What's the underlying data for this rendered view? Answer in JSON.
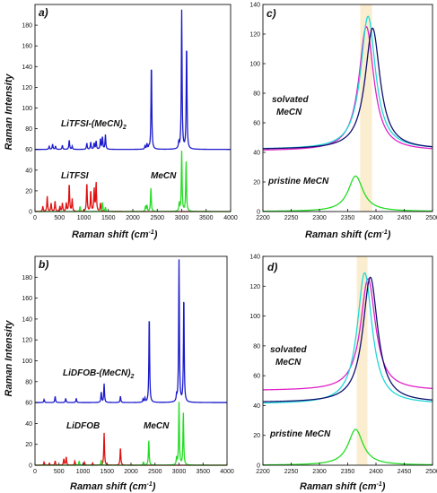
{
  "colors": {
    "blue": "#1a1acc",
    "red": "#e01010",
    "green": "#22dd22",
    "magenta": "#e020c8",
    "cyan": "#20d8d8",
    "navy": "#101070",
    "band": "#fbeed0",
    "axis": "#111111"
  },
  "shared": {
    "xlabel_text": "Raman shift",
    "xlabel_unit": "(cm",
    "xlabel_sup": "-1",
    "xlabel_close": ")",
    "ylabel": "Raman Intensity"
  },
  "chart_data": [
    {
      "id": "a",
      "panel_label": "a)",
      "type": "line",
      "xlim": [
        0,
        4000
      ],
      "ylim": [
        0,
        200
      ],
      "xticks": [
        0,
        500,
        1000,
        1500,
        2000,
        2500,
        3000,
        3500,
        4000
      ],
      "yticks": [
        0,
        20,
        40,
        60,
        80,
        100,
        120,
        140,
        160,
        180
      ],
      "annotations": [
        "LiTFSI-(MeCN)",
        "2",
        "LiTFSI",
        "MeCN"
      ],
      "series": [
        {
          "color": "blue",
          "baseline": 60,
          "peaks": [
            [
              290,
              3
            ],
            [
              360,
              5
            ],
            [
              420,
              3
            ],
            [
              560,
              4
            ],
            [
              700,
              9
            ],
            [
              760,
              3
            ],
            [
              1060,
              6
            ],
            [
              1140,
              7
            ],
            [
              1210,
              6
            ],
            [
              1250,
              8
            ],
            [
              1340,
              10
            ],
            [
              1380,
              12
            ],
            [
              1440,
              14
            ],
            [
              2250,
              3
            ],
            [
              2290,
              5
            ],
            [
              2330,
              2
            ],
            [
              2380,
              84
            ],
            [
              2940,
              6
            ],
            [
              3000,
              134
            ],
            [
              3100,
              103
            ]
          ]
        },
        {
          "color": "red",
          "baseline": 0,
          "peaks": [
            [
              160,
              5
            ],
            [
              250,
              15
            ],
            [
              330,
              8
            ],
            [
              410,
              10
            ],
            [
              510,
              5
            ],
            [
              560,
              8
            ],
            [
              640,
              8
            ],
            [
              700,
              27
            ],
            [
              760,
              12
            ],
            [
              1060,
              28
            ],
            [
              1140,
              20
            ],
            [
              1210,
              22
            ],
            [
              1250,
              28
            ],
            [
              1340,
              8
            ]
          ]
        },
        {
          "color": "green",
          "baseline": 0,
          "peaks": [
            [
              920,
              5
            ],
            [
              1380,
              9
            ],
            [
              1440,
              4
            ],
            [
              2260,
              5
            ],
            [
              2290,
              6
            ],
            [
              2370,
              23
            ],
            [
              2950,
              8
            ],
            [
              3000,
              58
            ],
            [
              3090,
              49
            ]
          ]
        }
      ]
    },
    {
      "id": "c",
      "panel_label": "c)",
      "type": "line",
      "xlim": [
        2200,
        2500
      ],
      "ylim": [
        0,
        140
      ],
      "xticks": [
        2200,
        2250,
        2300,
        2350,
        2400,
        2450,
        2500
      ],
      "yticks": [
        0,
        20,
        40,
        60,
        80,
        100,
        120,
        140
      ],
      "band": [
        2372,
        2393
      ],
      "annotations": [
        "solvated",
        "MeCN",
        "pristine MeCN"
      ],
      "series": [
        {
          "color": "magenta",
          "baseline": 41,
          "peaks": [
            [
              2383,
              84
            ]
          ]
        },
        {
          "color": "cyan",
          "baseline": 42,
          "peaks": [
            [
              2386,
              90
            ]
          ]
        },
        {
          "color": "navy",
          "baseline": 42,
          "peaks": [
            [
              2394,
              82
            ]
          ]
        },
        {
          "color": "green",
          "baseline": 0,
          "peaks": [
            [
              2364,
              24
            ]
          ]
        }
      ]
    },
    {
      "id": "b",
      "panel_label": "b)",
      "type": "line",
      "xlim": [
        0,
        4000
      ],
      "ylim": [
        0,
        200
      ],
      "xticks": [
        0,
        500,
        1000,
        1500,
        2000,
        2500,
        3000,
        3500,
        4000
      ],
      "yticks": [
        0,
        20,
        40,
        60,
        80,
        100,
        120,
        140,
        160,
        180
      ],
      "annotations": [
        "LiDFOB-(MeCN)",
        "2",
        "LiDFOB",
        "MeCN"
      ],
      "series": [
        {
          "color": "blue",
          "baseline": 60,
          "peaks": [
            [
              190,
              3
            ],
            [
              420,
              6
            ],
            [
              640,
              4
            ],
            [
              860,
              4
            ],
            [
              1380,
              10
            ],
            [
              1440,
              18
            ],
            [
              1780,
              6
            ],
            [
              2250,
              3
            ],
            [
              2290,
              4
            ],
            [
              2380,
              85
            ],
            [
              2950,
              6
            ],
            [
              3000,
              136
            ],
            [
              3100,
              104
            ]
          ]
        },
        {
          "color": "red",
          "baseline": 0,
          "peaks": [
            [
              190,
              3
            ],
            [
              300,
              2
            ],
            [
              420,
              4
            ],
            [
              600,
              6
            ],
            [
              650,
              8
            ],
            [
              830,
              4
            ],
            [
              1030,
              3
            ],
            [
              1200,
              2
            ],
            [
              1440,
              31
            ],
            [
              1780,
              17
            ]
          ]
        },
        {
          "color": "green",
          "baseline": 0,
          "peaks": [
            [
              920,
              4
            ],
            [
              1380,
              5
            ],
            [
              2260,
              3
            ],
            [
              2370,
              24
            ],
            [
              2950,
              7
            ],
            [
              3000,
              60
            ],
            [
              3090,
              51
            ]
          ]
        }
      ]
    },
    {
      "id": "d",
      "panel_label": "d)",
      "type": "line",
      "xlim": [
        2200,
        2500
      ],
      "ylim": [
        0,
        140
      ],
      "xticks": [
        2200,
        2250,
        2300,
        2350,
        2400,
        2450,
        2500
      ],
      "yticks": [
        0,
        20,
        40,
        60,
        80,
        100,
        120,
        140
      ],
      "band": [
        2366,
        2385
      ],
      "annotations": [
        "solvated",
        "MeCN",
        "pristine MeCN"
      ],
      "series": [
        {
          "color": "magenta",
          "baseline": 50,
          "peaks": [
            [
              2386,
              75
            ]
          ]
        },
        {
          "color": "cyan",
          "baseline": 41,
          "peaks": [
            [
              2380,
              88
            ]
          ]
        },
        {
          "color": "navy",
          "baseline": 42,
          "peaks": [
            [
              2390,
              84
            ]
          ]
        },
        {
          "color": "green",
          "baseline": 0,
          "peaks": [
            [
              2364,
              24
            ]
          ]
        }
      ]
    }
  ]
}
